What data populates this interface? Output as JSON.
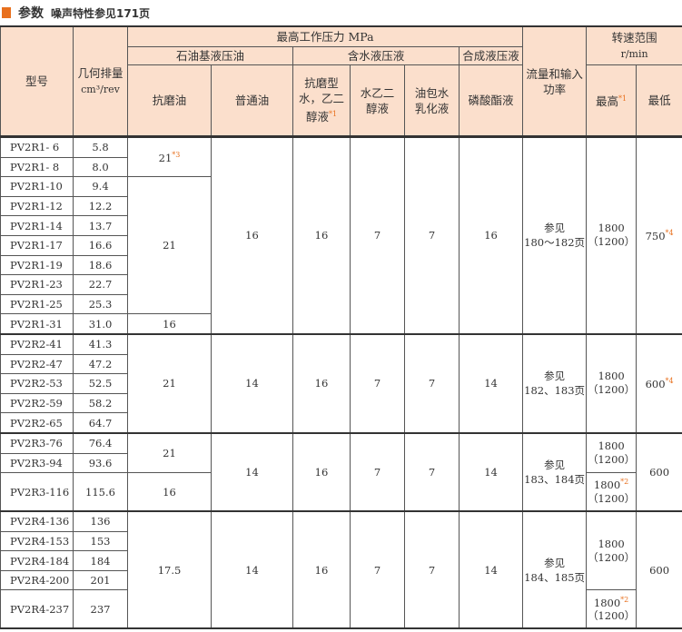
{
  "title": {
    "main": "参数",
    "sub": "噪声特性参见171页"
  },
  "header": {
    "model": "型号",
    "displacement": "几何排量",
    "displacement_unit": "cm³/rev",
    "max_pressure": "最高工作压力  MPa",
    "petroleum": "石油基液压油",
    "water": "含水液压液",
    "synthetic": "合成液压液",
    "antiwear": "抗磨油",
    "normal": "普通油",
    "aw_water_glycol": "抗磨型水，乙二醇液",
    "water_glycol": "水乙二醇液",
    "w_o_emulsion": "油包水乳化液",
    "phosphate": "磷酸酯液",
    "flow_power": "流量和输入功率",
    "speed": "转速范围",
    "speed_unit": "r/min",
    "speed_max": "最高",
    "speed_min": "最低",
    "star1": "*1"
  },
  "groups": [
    {
      "rows": [
        [
          "PV2R1- 6",
          "5.8"
        ],
        [
          "PV2R1- 8",
          "8.0"
        ],
        [
          "PV2R1-10",
          "9.4"
        ],
        [
          "PV2R1-12",
          "12.2"
        ],
        [
          "PV2R1-14",
          "13.7"
        ],
        [
          "PV2R1-17",
          "16.6"
        ],
        [
          "PV2R1-19",
          "18.6"
        ],
        [
          "PV2R1-23",
          "22.7"
        ],
        [
          "PV2R1-25",
          "25.3"
        ],
        [
          "PV2R1-31",
          "31.0"
        ]
      ],
      "antiwear": [
        "21",
        "21",
        "16"
      ],
      "antiwear_star": "*3",
      "normal": "16",
      "aw_water_glycol": "16",
      "water_glycol": "7",
      "emulsion": "7",
      "phosphate": "16",
      "flow_ref": "参见",
      "flow_pages": "180～182页",
      "speed_max": "1800",
      "speed_max_paren": "（1200）",
      "speed_min": "750",
      "speed_min_star": "*4"
    },
    {
      "rows": [
        [
          "PV2R2-41",
          "41.3"
        ],
        [
          "PV2R2-47",
          "47.2"
        ],
        [
          "PV2R2-53",
          "52.5"
        ],
        [
          "PV2R2-59",
          "58.2"
        ],
        [
          "PV2R2-65",
          "64.7"
        ]
      ],
      "antiwear": "21",
      "normal": "14",
      "aw_water_glycol": "16",
      "water_glycol": "7",
      "emulsion": "7",
      "phosphate": "14",
      "flow_ref": "参见",
      "flow_pages": "182、183页",
      "speed_max": "1800",
      "speed_max_paren": "（1200）",
      "speed_min": "600",
      "speed_min_star": "*4"
    },
    {
      "rows": [
        [
          "PV2R3-76",
          "76.4"
        ],
        [
          "PV2R3-94",
          "93.6"
        ],
        [
          "PV2R3-116",
          "115.6"
        ]
      ],
      "antiwear": [
        "21",
        "16"
      ],
      "normal": "14",
      "aw_water_glycol": "16",
      "water_glycol": "7",
      "emulsion": "7",
      "phosphate": "14",
      "flow_ref": "参见",
      "flow_pages": "183、184页",
      "speed_max": [
        "1800",
        "（1200）",
        "1800",
        "（1200）"
      ],
      "speed_max_star": "*2",
      "speed_min": "600"
    },
    {
      "rows": [
        [
          "PV2R4-136",
          "136"
        ],
        [
          "PV2R4-153",
          "153"
        ],
        [
          "PV2R4-184",
          "184"
        ],
        [
          "PV2R4-200",
          "201"
        ],
        [
          "PV2R4-237",
          "237"
        ]
      ],
      "antiwear": "17.5",
      "normal": "14",
      "aw_water_glycol": "16",
      "water_glycol": "7",
      "emulsion": "7",
      "phosphate": "14",
      "flow_ref": "参见",
      "flow_pages": "184、185页",
      "speed_max": [
        "1800",
        "（1200）",
        "1800",
        "（1200）"
      ],
      "speed_max_star": "*2",
      "speed_min": "600"
    }
  ]
}
